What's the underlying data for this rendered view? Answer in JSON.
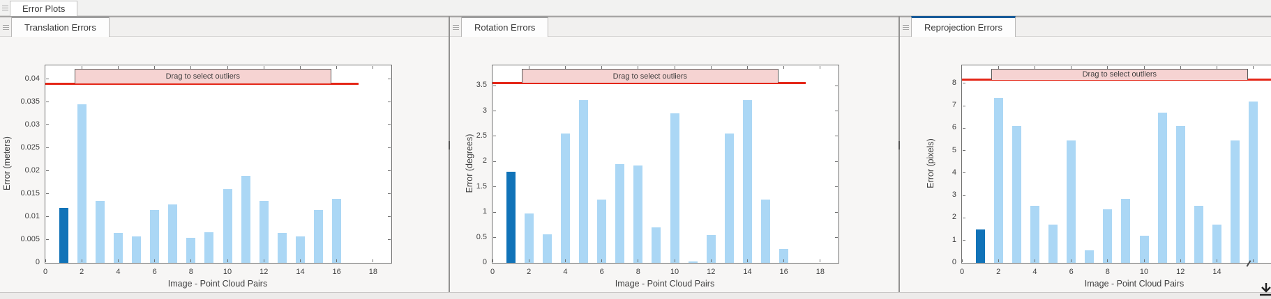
{
  "window": {
    "tab_label": "Error Plots"
  },
  "colors": {
    "bar_light": "#abd7f5",
    "bar_highlight": "#1173b8",
    "threshold_red": "#e42617",
    "band_fill": "#f6d3d2",
    "accent_gray": "#9e9e9e",
    "accent_blue": "#1a5c99"
  },
  "footer": {
    "corner_icon": "arrow-down-to-line-icon"
  },
  "panels": [
    {
      "tab": "Translation Errors",
      "accent_color": "#9e9e9e",
      "chart_data": {
        "type": "bar",
        "title": "Translation Errors",
        "xlabel": "Image - Point Cloud Pairs",
        "ylabel": "Error (meters)",
        "x": [
          1,
          2,
          3,
          4,
          5,
          6,
          7,
          8,
          9,
          10,
          11,
          12,
          13,
          14,
          15,
          16
        ],
        "values": [
          0.012,
          0.0345,
          0.0135,
          0.0065,
          0.0058,
          0.0115,
          0.0127,
          0.0055,
          0.0067,
          0.016,
          0.019,
          0.0135,
          0.0065,
          0.0058,
          0.0115,
          0.014
        ],
        "highlight_index": 1,
        "xlim": [
          0,
          19
        ],
        "ylim": [
          0,
          0.043
        ],
        "xticks": [
          0,
          2,
          4,
          6,
          8,
          10,
          12,
          14,
          16,
          18
        ],
        "xtick_labels": [
          "0",
          "2",
          "4",
          "6",
          "8",
          "10",
          "12",
          "14",
          "16",
          "18"
        ],
        "yticks": [
          0,
          0.005,
          0.01,
          0.015,
          0.02,
          0.025,
          0.03,
          0.035,
          0.04
        ],
        "ytick_labels": [
          "0",
          "0.005",
          "0.01",
          "0.015",
          "0.02",
          "0.025",
          "0.03",
          "0.035",
          "0.04"
        ],
        "grid": false,
        "legend": null,
        "threshold": {
          "value": 0.039,
          "label": "Drag to select outliers",
          "x_start": 0,
          "x_end": 17.2,
          "band_x_start": 1.6,
          "band_x_end": 15.7
        }
      }
    },
    {
      "tab": "Rotation Errors",
      "accent_color": "#9e9e9e",
      "chart_data": {
        "type": "bar",
        "title": "Rotation Errors",
        "xlabel": "Image - Point Cloud Pairs",
        "ylabel": "Error (degrees)",
        "x": [
          1,
          2,
          3,
          4,
          5,
          6,
          7,
          8,
          9,
          10,
          11,
          12,
          13,
          14,
          15,
          16
        ],
        "values": [
          1.8,
          0.98,
          0.57,
          2.55,
          3.22,
          1.25,
          1.95,
          1.92,
          0.7,
          2.95,
          0.03,
          0.55,
          2.55,
          3.22,
          1.25,
          0.27
        ],
        "highlight_index": 1,
        "xlim": [
          0,
          19
        ],
        "ylim": [
          0,
          3.9
        ],
        "xticks": [
          0,
          2,
          4,
          6,
          8,
          10,
          12,
          14,
          16,
          18
        ],
        "xtick_labels": [
          "0",
          "2",
          "4",
          "6",
          "8",
          "10",
          "12",
          "14",
          "16",
          "18"
        ],
        "yticks": [
          0,
          0.5,
          1,
          1.5,
          2,
          2.5,
          3,
          3.5
        ],
        "ytick_labels": [
          "0",
          "0.5",
          "1",
          "1.5",
          "2",
          "2.5",
          "3",
          "3.5"
        ],
        "grid": false,
        "legend": null,
        "threshold": {
          "value": 3.55,
          "label": "Drag to select outliers",
          "x_start": 0,
          "x_end": 17.2,
          "band_x_start": 1.6,
          "band_x_end": 15.7
        }
      }
    },
    {
      "tab": "Reprojection Errors",
      "accent_color": "#1a5c99",
      "chart_data": {
        "type": "bar",
        "title": "Reprojection Errors",
        "xlabel": "Image - Point Cloud Pairs",
        "ylabel": "Error (pixels)",
        "x": [
          1,
          2,
          3,
          4,
          5,
          6,
          7,
          8,
          9,
          10,
          11,
          12,
          13,
          14,
          15,
          16
        ],
        "values": [
          1.5,
          7.35,
          6.1,
          2.55,
          1.7,
          5.45,
          0.55,
          2.4,
          2.85,
          1.2,
          6.7,
          6.1,
          2.55,
          1.7,
          5.45,
          7.2
        ],
        "highlight_index": 1,
        "xlim": [
          0,
          19
        ],
        "ylim": [
          0,
          8.8
        ],
        "xticks": [
          0,
          2,
          4,
          6,
          8,
          10,
          12,
          14,
          16,
          18
        ],
        "xtick_labels": [
          "0",
          "2",
          "4",
          "6",
          "8",
          "10",
          "12",
          "14",
          "",
          ""
        ],
        "yticks": [
          0,
          1,
          2,
          3,
          4,
          5,
          6,
          7,
          8
        ],
        "ytick_labels": [
          "0",
          "1",
          "2",
          "3",
          "4",
          "5",
          "6",
          "7",
          "8"
        ],
        "grid": false,
        "legend": null,
        "threshold": {
          "value": 8.15,
          "label": "Drag to select outliers",
          "x_start": 0,
          "x_end": 17.2,
          "band_x_start": 1.6,
          "band_x_end": 15.7
        }
      }
    }
  ]
}
